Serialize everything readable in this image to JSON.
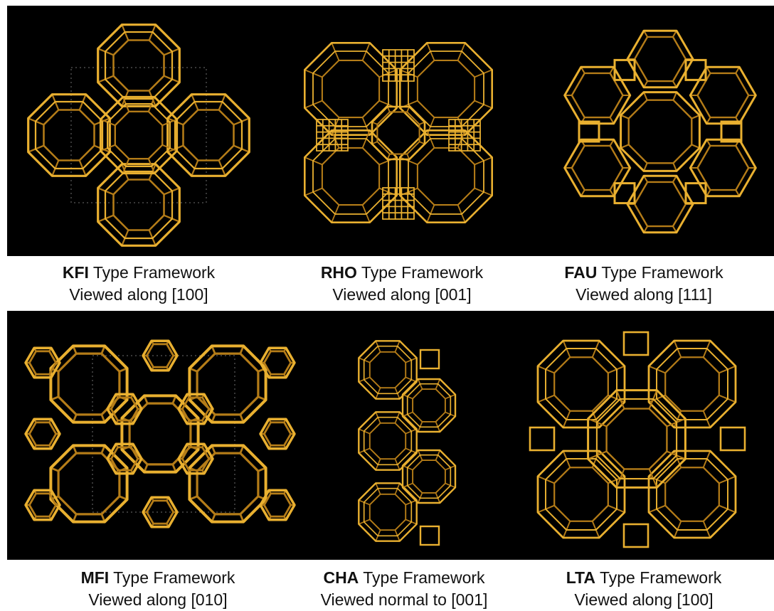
{
  "colors": {
    "strut": "#e9b030",
    "strut_dark": "#b47c18",
    "background": "#000000",
    "cell_edge": "#6f6f6f"
  },
  "frameworks": [
    {
      "id": "kfi",
      "code": "KFI",
      "title_suffix": " Type Framework",
      "view": "Viewed along [100]",
      "depiction": "cross"
    },
    {
      "id": "rho",
      "code": "RHO",
      "title_suffix": " Type Framework",
      "view": "Viewed along [001]",
      "depiction": "rho"
    },
    {
      "id": "fau",
      "code": "FAU",
      "title_suffix": " Type Framework",
      "view": "Viewed along [111]",
      "depiction": "ring"
    },
    {
      "id": "mfi",
      "code": "MFI",
      "title_suffix": " Type Framework",
      "view": "Viewed along [010]",
      "depiction": "mfi"
    },
    {
      "id": "cha",
      "code": "CHA",
      "title_suffix": " Type Framework",
      "view": "Viewed normal to [001]",
      "depiction": "column"
    },
    {
      "id": "lta",
      "code": "LTA",
      "title_suffix": " Type Framework",
      "view": "Viewed along [100]",
      "depiction": "lta"
    }
  ]
}
